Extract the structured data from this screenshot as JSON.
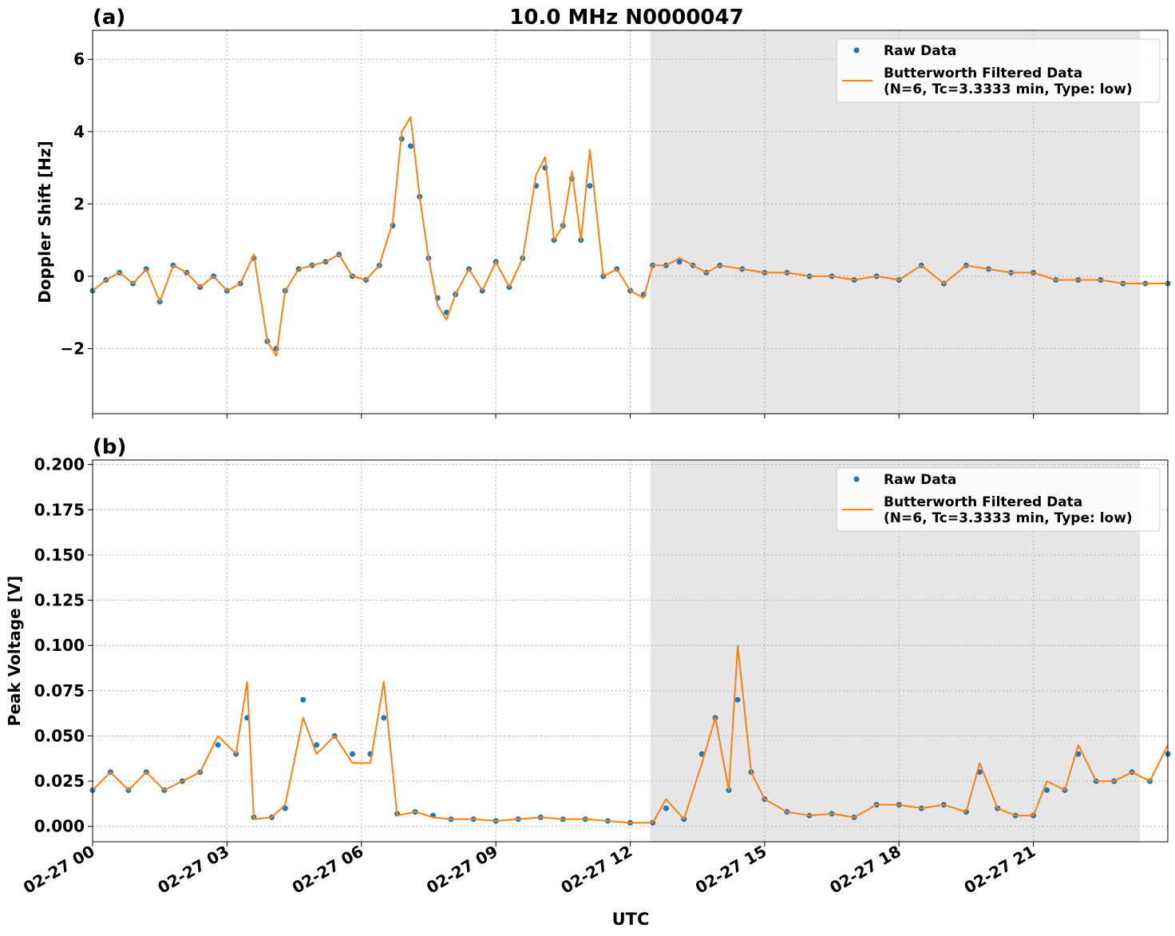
{
  "figure": {
    "title": "10.0 MHz N0000047",
    "xlabel": "UTC",
    "x_tick_labels": [
      "02-27 00",
      "02-27 03",
      "02-27 06",
      "02-27 09",
      "02-27 12",
      "02-27 15",
      "02-27 18",
      "02-27 21"
    ]
  },
  "colors": {
    "raw": "#1f77b4",
    "filtered": "#ff7f0e",
    "shade": "#e6e6e6",
    "grid": "#b0b0b0"
  },
  "legend": {
    "raw_label": "Raw Data",
    "filtered_label_line1": "Butterworth Filtered Data",
    "filtered_label_line2": "(N=6, Tc=3.3333 min, Type: low)"
  },
  "chart_data": [
    {
      "type": "scatter",
      "panel_label": "(a)",
      "ylabel": "Doppler Shift [Hz]",
      "xlim": [
        0,
        24
      ],
      "ylim": [
        -3.8,
        6.8
      ],
      "y_ticks": [
        -2,
        0,
        2,
        4,
        6
      ],
      "y_tick_labels": [
        "−2",
        "0",
        "2",
        "4",
        "6"
      ],
      "shaded_region": [
        12.45,
        23.38
      ],
      "grid": true,
      "legend_position": "top-right",
      "x_unit": "hours UTC on 02-27",
      "series": [
        {
          "name": "Raw Data",
          "style": "points",
          "description": "Raw Doppler shift samples",
          "x": [
            0,
            0.3,
            0.6,
            0.9,
            1.2,
            1.5,
            1.8,
            2.1,
            2.4,
            2.7,
            3.0,
            3.3,
            3.6,
            3.9,
            4.1,
            4.3,
            4.6,
            4.9,
            5.2,
            5.5,
            5.8,
            6.1,
            6.4,
            6.7,
            6.9,
            7.1,
            7.3,
            7.5,
            7.7,
            7.9,
            8.1,
            8.4,
            8.7,
            9.0,
            9.3,
            9.6,
            9.9,
            10.1,
            10.3,
            10.5,
            10.7,
            10.9,
            11.1,
            11.4,
            11.7,
            12.0,
            12.3,
            12.5,
            12.8,
            13.1,
            13.4,
            13.7,
            14.0,
            14.5,
            15.0,
            15.5,
            16.0,
            16.5,
            17.0,
            17.5,
            18.0,
            18.5,
            19.0,
            19.5,
            20.0,
            20.5,
            21.0,
            21.5,
            22.0,
            22.5,
            23.0,
            23.5,
            24.0
          ],
          "y": [
            -0.4,
            -0.1,
            0.1,
            -0.2,
            0.2,
            -0.7,
            0.3,
            0.1,
            -0.3,
            0.0,
            -0.4,
            -0.2,
            0.5,
            -1.8,
            -2.0,
            -0.4,
            0.2,
            0.3,
            0.4,
            0.6,
            0.0,
            -0.1,
            0.3,
            1.4,
            3.8,
            3.6,
            2.2,
            0.5,
            -0.6,
            -1.0,
            -0.5,
            0.2,
            -0.4,
            0.4,
            -0.3,
            0.5,
            2.5,
            3.0,
            1.0,
            1.4,
            2.7,
            1.0,
            2.5,
            0.0,
            0.2,
            -0.4,
            -0.5,
            0.3,
            0.3,
            0.4,
            0.3,
            0.1,
            0.3,
            0.2,
            0.1,
            0.1,
            0.0,
            0.0,
            -0.1,
            0.0,
            -0.1,
            0.3,
            -0.2,
            0.3,
            0.2,
            0.1,
            0.1,
            -0.1,
            -0.1,
            -0.1,
            -0.2,
            -0.2,
            -0.2
          ]
        },
        {
          "name": "Butterworth Filtered Data (N=6, Tc=3.3333 min, Type: low)",
          "style": "line",
          "x": [
            0,
            0.3,
            0.6,
            0.9,
            1.2,
            1.5,
            1.8,
            2.1,
            2.4,
            2.7,
            3.0,
            3.3,
            3.6,
            3.9,
            4.1,
            4.3,
            4.6,
            4.9,
            5.2,
            5.5,
            5.8,
            6.1,
            6.4,
            6.7,
            6.9,
            7.1,
            7.3,
            7.5,
            7.7,
            7.9,
            8.1,
            8.4,
            8.7,
            9.0,
            9.3,
            9.6,
            9.9,
            10.1,
            10.3,
            10.5,
            10.7,
            10.9,
            11.1,
            11.4,
            11.7,
            12.0,
            12.3,
            12.5,
            12.8,
            13.1,
            13.4,
            13.7,
            14.0,
            14.5,
            15.0,
            15.5,
            16.0,
            16.5,
            17.0,
            17.5,
            18.0,
            18.5,
            19.0,
            19.5,
            20.0,
            20.5,
            21.0,
            21.5,
            22.0,
            22.5,
            23.0,
            23.5,
            24.0
          ],
          "y": [
            -0.4,
            -0.1,
            0.1,
            -0.2,
            0.2,
            -0.7,
            0.3,
            0.1,
            -0.3,
            0.0,
            -0.4,
            -0.2,
            0.6,
            -1.8,
            -2.2,
            -0.4,
            0.2,
            0.3,
            0.4,
            0.6,
            0.0,
            -0.1,
            0.3,
            1.5,
            4.0,
            4.4,
            2.2,
            0.5,
            -0.8,
            -1.2,
            -0.5,
            0.2,
            -0.4,
            0.4,
            -0.3,
            0.5,
            2.8,
            3.3,
            1.0,
            1.4,
            2.9,
            1.0,
            3.5,
            0.0,
            0.2,
            -0.4,
            -0.6,
            0.3,
            0.3,
            0.5,
            0.3,
            0.1,
            0.3,
            0.2,
            0.1,
            0.1,
            0.0,
            0.0,
            -0.1,
            0.0,
            -0.1,
            0.3,
            -0.2,
            0.3,
            0.2,
            0.1,
            0.1,
            -0.1,
            -0.1,
            -0.1,
            -0.2,
            -0.2,
            -0.2
          ]
        }
      ]
    },
    {
      "type": "scatter",
      "panel_label": "(b)",
      "ylabel": "Peak Voltage [V]",
      "xlim": [
        0,
        24
      ],
      "ylim": [
        -0.0085,
        0.2025
      ],
      "y_ticks": [
        0,
        0.025,
        0.05,
        0.075,
        0.1,
        0.125,
        0.15,
        0.175,
        0.2
      ],
      "y_tick_labels": [
        "0.000",
        "0.025",
        "0.050",
        "0.075",
        "0.100",
        "0.125",
        "0.150",
        "0.175",
        "0.200"
      ],
      "shaded_region": [
        12.45,
        23.38
      ],
      "grid": true,
      "legend_position": "top-right",
      "x_unit": "hours UTC on 02-27",
      "series": [
        {
          "name": "Raw Data",
          "style": "points",
          "description": "Raw peak voltage samples",
          "x": [
            0,
            0.4,
            0.8,
            1.2,
            1.6,
            2.0,
            2.4,
            2.8,
            3.2,
            3.45,
            3.6,
            4.0,
            4.3,
            4.7,
            5.0,
            5.4,
            5.8,
            6.2,
            6.5,
            6.8,
            7.2,
            7.6,
            8.0,
            8.5,
            9.0,
            9.5,
            10.0,
            10.5,
            11.0,
            11.5,
            12.0,
            12.5,
            12.8,
            13.2,
            13.6,
            13.9,
            14.2,
            14.4,
            14.7,
            15.0,
            15.5,
            16.0,
            16.5,
            17.0,
            17.5,
            18.0,
            18.5,
            19.0,
            19.5,
            19.8,
            20.2,
            20.6,
            21.0,
            21.3,
            21.7,
            22.0,
            22.4,
            22.8,
            23.2,
            23.6,
            24.0
          ],
          "y": [
            0.02,
            0.03,
            0.02,
            0.03,
            0.02,
            0.025,
            0.03,
            0.045,
            0.04,
            0.06,
            0.005,
            0.005,
            0.01,
            0.07,
            0.045,
            0.05,
            0.04,
            0.04,
            0.06,
            0.007,
            0.008,
            0.006,
            0.004,
            0.004,
            0.003,
            0.004,
            0.005,
            0.004,
            0.004,
            0.003,
            0.002,
            0.002,
            0.01,
            0.004,
            0.04,
            0.06,
            0.02,
            0.07,
            0.03,
            0.015,
            0.008,
            0.006,
            0.007,
            0.005,
            0.012,
            0.012,
            0.01,
            0.012,
            0.008,
            0.03,
            0.01,
            0.006,
            0.006,
            0.02,
            0.02,
            0.04,
            0.025,
            0.025,
            0.03,
            0.025,
            0.04
          ]
        },
        {
          "name": "Butterworth Filtered Data (N=6, Tc=3.3333 min, Type: low)",
          "style": "line",
          "x": [
            0,
            0.4,
            0.8,
            1.2,
            1.6,
            2.0,
            2.4,
            2.8,
            3.2,
            3.45,
            3.6,
            4.0,
            4.3,
            4.7,
            5.0,
            5.4,
            5.8,
            6.2,
            6.5,
            6.8,
            7.2,
            7.6,
            8.0,
            8.5,
            9.0,
            9.5,
            10.0,
            10.5,
            11.0,
            11.5,
            12.0,
            12.5,
            12.8,
            13.2,
            13.6,
            13.9,
            14.2,
            14.4,
            14.7,
            15.0,
            15.5,
            16.0,
            16.5,
            17.0,
            17.5,
            18.0,
            18.5,
            19.0,
            19.5,
            19.8,
            20.2,
            20.6,
            21.0,
            21.3,
            21.7,
            22.0,
            22.4,
            22.8,
            23.2,
            23.6,
            24.0
          ],
          "y": [
            0.02,
            0.03,
            0.02,
            0.03,
            0.02,
            0.025,
            0.03,
            0.05,
            0.04,
            0.08,
            0.004,
            0.005,
            0.012,
            0.06,
            0.04,
            0.05,
            0.035,
            0.035,
            0.08,
            0.006,
            0.008,
            0.005,
            0.004,
            0.004,
            0.003,
            0.004,
            0.005,
            0.004,
            0.004,
            0.003,
            0.002,
            0.002,
            0.015,
            0.004,
            0.035,
            0.06,
            0.02,
            0.1,
            0.03,
            0.015,
            0.008,
            0.006,
            0.007,
            0.005,
            0.012,
            0.012,
            0.01,
            0.012,
            0.008,
            0.035,
            0.01,
            0.006,
            0.006,
            0.025,
            0.02,
            0.045,
            0.025,
            0.025,
            0.03,
            0.025,
            0.045
          ]
        }
      ]
    }
  ]
}
